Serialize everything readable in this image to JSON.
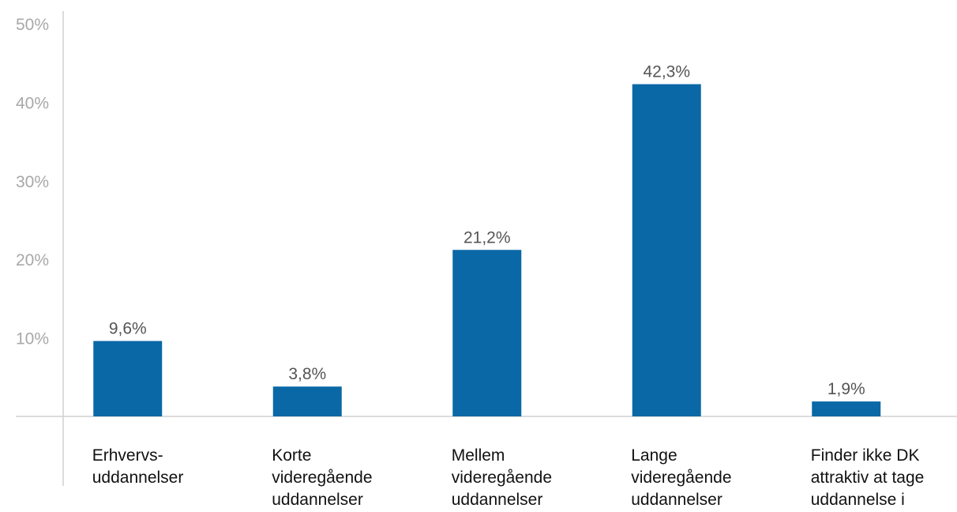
{
  "chart_data": {
    "type": "bar",
    "categories": [
      [
        "Erhvervs-",
        "uddannelser"
      ],
      [
        "Korte",
        "videregående",
        "uddannelser"
      ],
      [
        "Mellem",
        "videregående",
        "uddannelser"
      ],
      [
        "Lange",
        "videregående",
        "uddannelser"
      ],
      [
        "Finder ikke DK",
        "attraktiv at tage",
        "uddannelse i"
      ]
    ],
    "values": [
      9.6,
      3.8,
      21.2,
      42.3,
      1.9
    ],
    "value_labels": [
      "9,6%",
      "3,8%",
      "21,2%",
      "42,3%",
      "1,9%"
    ],
    "color": "#0a68a6",
    "ylim": [
      0,
      50
    ],
    "yticks": [
      {
        "value": 10,
        "label": "10%"
      },
      {
        "value": 20,
        "label": "20%"
      },
      {
        "value": 30,
        "label": "30%"
      },
      {
        "value": 40,
        "label": "40%"
      },
      {
        "value": 50,
        "label": "50%"
      }
    ],
    "grid": false
  }
}
